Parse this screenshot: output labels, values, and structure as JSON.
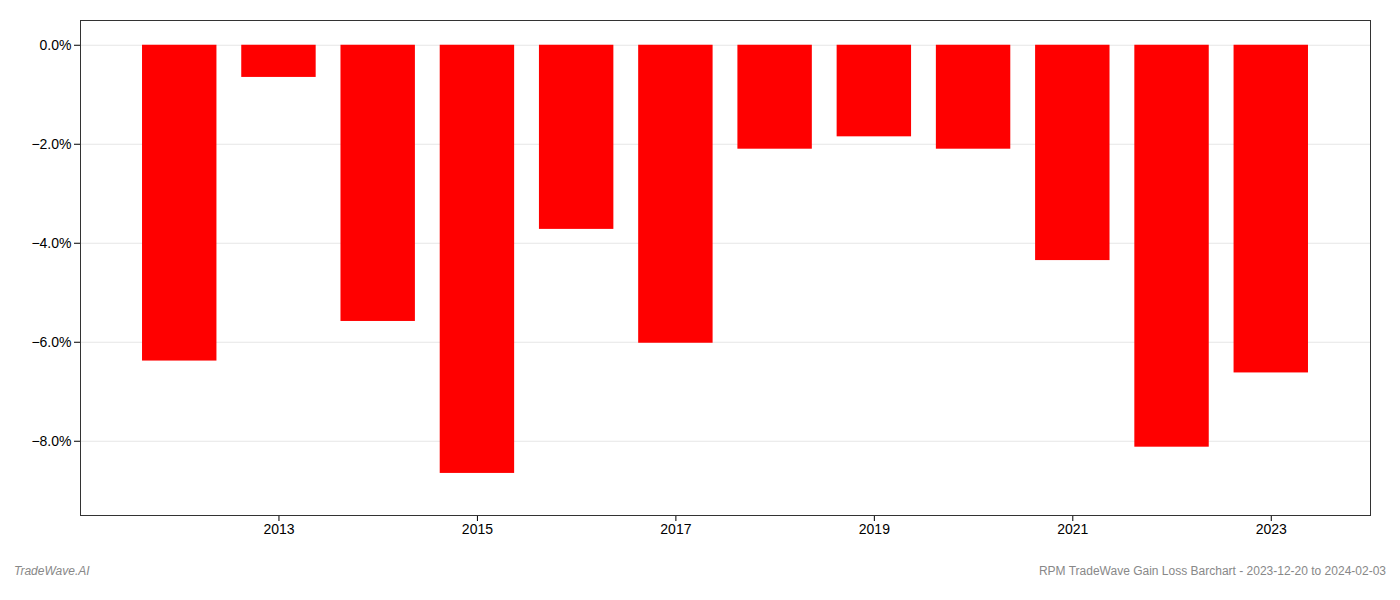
{
  "chart_data": {
    "type": "bar",
    "x": [
      2012,
      2013,
      2014,
      2015,
      2016,
      2017,
      2018,
      2019,
      2020,
      2021,
      2022,
      2023
    ],
    "values": [
      -6.38,
      -0.65,
      -5.58,
      -8.65,
      -3.72,
      -6.02,
      -2.1,
      -1.85,
      -2.1,
      -4.35,
      -8.12,
      -6.62
    ],
    "color": "#ff0000",
    "xlim": [
      2011,
      2024
    ],
    "xticks": [
      2013,
      2015,
      2017,
      2019,
      2021,
      2023
    ],
    "ylim": [
      -9.5,
      0.5
    ],
    "yticks": [
      {
        "value": 0.0,
        "label": "0.0%"
      },
      {
        "value": -2.0,
        "label": "−2.0%"
      },
      {
        "value": -4.0,
        "label": "−4.0%"
      },
      {
        "value": -6.0,
        "label": "−6.0%"
      },
      {
        "value": -8.0,
        "label": "−8.0%"
      }
    ],
    "grid": true,
    "annotations": [
      "TradeWave.AI",
      "RPM TradeWave Gain Loss Barchart - 2023-12-20 to 2024-02-03"
    ]
  }
}
